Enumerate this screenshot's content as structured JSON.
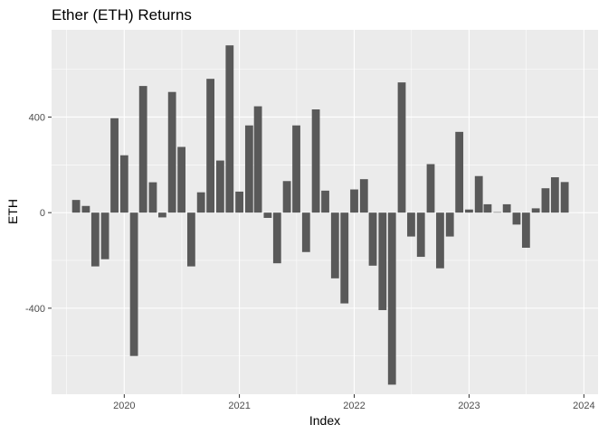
{
  "chart_data": {
    "type": "bar",
    "title": "Ether (ETH) Returns",
    "xlabel": "Index",
    "ylabel": "ETH",
    "bar_color": "#595959",
    "panel_color": "#ebebeb",
    "grid": true,
    "legend": "none",
    "x_ticks": [
      "2020",
      "2021",
      "2022",
      "2023",
      "2024"
    ],
    "x_tick_values": [
      "2020-01-01",
      "2021-01-01",
      "2022-01-01",
      "2023-01-01",
      "2024-01-01"
    ],
    "y_ticks": [
      "-400",
      "0",
      "400"
    ],
    "y_tick_values": [
      -400,
      0,
      400
    ],
    "xlim": [
      "2019-05-15",
      "2024-02-15"
    ],
    "ylim": [
      -760,
      765
    ],
    "x": [
      "2019-08-01",
      "2019-09-01",
      "2019-10-01",
      "2019-11-01",
      "2019-12-01",
      "2020-01-01",
      "2020-02-01",
      "2020-03-01",
      "2020-04-01",
      "2020-05-01",
      "2020-06-01",
      "2020-07-01",
      "2020-08-01",
      "2020-09-01",
      "2020-10-01",
      "2020-11-01",
      "2020-12-01",
      "2021-01-01",
      "2021-02-01",
      "2021-03-01",
      "2021-04-01",
      "2021-05-01",
      "2021-06-01",
      "2021-07-01",
      "2021-08-01",
      "2021-09-01",
      "2021-10-01",
      "2021-11-01",
      "2021-12-01",
      "2022-01-01",
      "2022-02-01",
      "2022-03-01",
      "2022-04-01",
      "2022-05-01",
      "2022-06-01",
      "2022-07-01",
      "2022-08-01",
      "2022-09-01",
      "2022-10-01",
      "2022-11-01",
      "2022-12-01",
      "2023-01-01",
      "2023-02-01",
      "2023-03-01",
      "2023-04-01",
      "2023-05-01",
      "2023-06-01",
      "2023-07-01",
      "2023-08-01",
      "2023-09-01",
      "2023-10-01",
      "2023-11-01",
      "2023-12-01"
    ],
    "values": [
      53,
      28,
      -225,
      -195,
      395,
      240,
      -600,
      530,
      127,
      -20,
      505,
      275,
      -225,
      85,
      560,
      218,
      700,
      88,
      365,
      445,
      -22,
      -212,
      132,
      365,
      -165,
      432,
      92,
      -275,
      -380,
      97,
      140,
      -222,
      -408,
      -720,
      545,
      -100,
      -185,
      203,
      -233,
      -100,
      338,
      13,
      153,
      35,
      2,
      35,
      -50,
      -147,
      18,
      102,
      148,
      128,
      0
    ]
  }
}
